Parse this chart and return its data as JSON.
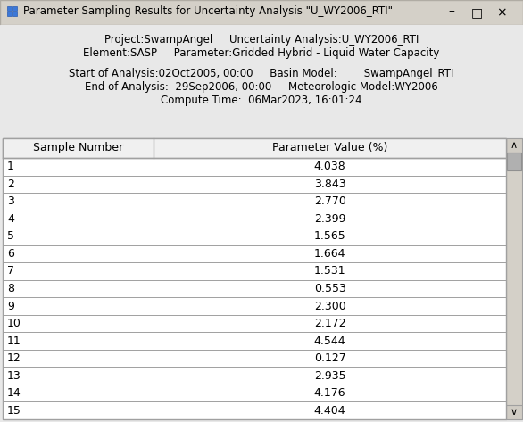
{
  "title": "Parameter Sampling Results for Uncertainty Analysis \"U_WY2006_RTI\"",
  "info_line1": "Project:SwampAngel     Uncertainty Analysis:U_WY2006_RTI",
  "info_line2": "Element:SASP     Parameter:Gridded Hybrid - Liquid Water Capacity",
  "info_line3": "Start of Analysis:02Oct2005, 00:00     Basin Model:        SwampAngel_RTI",
  "info_line4": "End of Analysis:  29Sep2006, 00:00     Meteorologic Model:WY2006",
  "info_line5": "Compute Time:  06Mar2023, 16:01:24",
  "col1_header": "Sample Number",
  "col2_header": "Parameter Value (%)",
  "sample_numbers": [
    1,
    2,
    3,
    4,
    5,
    6,
    7,
    8,
    9,
    10,
    11,
    12,
    13,
    14,
    15
  ],
  "parameter_values": [
    "4.038",
    "3.843",
    "2.770",
    "2.399",
    "1.565",
    "1.664",
    "1.531",
    "0.553",
    "2.300",
    "2.172",
    "4.544",
    "0.127",
    "2.935",
    "4.176",
    "4.404"
  ],
  "bg_color": "#e8e8e8",
  "table_bg": "#ffffff",
  "border_color": "#a0a0a0",
  "title_bar_color": "#d4d0c8",
  "text_color": "#000000",
  "scrollbar_bg": "#d4d0c8",
  "scrollbar_thumb": "#b0b0b0",
  "figwidth": 5.86,
  "figheight": 4.73,
  "dpi": 100
}
